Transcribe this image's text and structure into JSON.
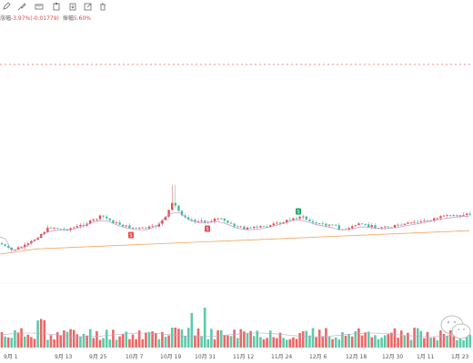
{
  "toolbar": {
    "icons": [
      "pencil-icon",
      "brush-icon",
      "measure-icon",
      "trash-icon",
      "export-icon",
      "edit-icon",
      "delete-icon"
    ]
  },
  "info": {
    "change_label": "涨幅",
    "change_value": "-3.97%(-0.01779)",
    "amplitude_label": "振幅",
    "amplitude_value": "5.60%"
  },
  "colors": {
    "up": "#e84c4c",
    "down": "#3fbf9b",
    "ma_long": "#f0a35c",
    "ma_short": "#c28fd1",
    "dashed_line": "#e66a6a",
    "grid": "#eeeeee"
  },
  "x_axis": {
    "labels": [
      "9月 1",
      "9月 13",
      "9月 25",
      "10月 7",
      "10月 19",
      "10月 31",
      "11月 12",
      "11月 24",
      "12月 6",
      "12月 18",
      "12月 30",
      "1月 11",
      "1月 23"
    ]
  },
  "markers": [
    {
      "label": "S",
      "color": "#e84c4c"
    },
    {
      "label": "S",
      "color": "#e84c4c"
    },
    {
      "label": "S",
      "color": "#1aa86a"
    }
  ],
  "chart_data": {
    "type": "candlestick",
    "series_note": "",
    "x_labels": [
      "9月 1",
      "9月 13",
      "9月 25",
      "10月 7",
      "10月 19",
      "10月 31",
      "11月 12",
      "11月 24",
      "12月 6",
      "12月 18",
      "12月 30",
      "1月 11",
      "1月 23"
    ]
  }
}
